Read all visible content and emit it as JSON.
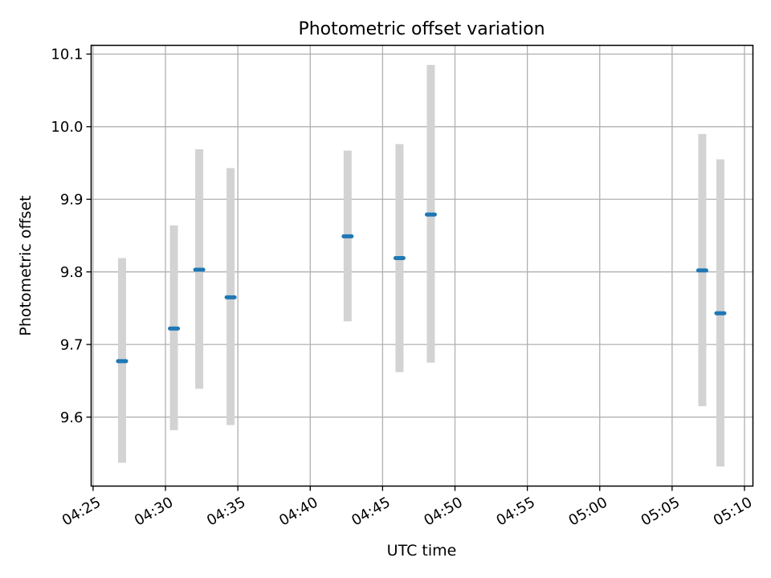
{
  "chart_data": {
    "type": "scatter",
    "title": "Photometric offset variation",
    "xlabel": "UTC time",
    "ylabel": "Photometric offset",
    "x_tick_labels": [
      "04:25",
      "04:30",
      "04:35",
      "04:40",
      "04:45",
      "04:50",
      "04:55",
      "05:00",
      "05:05",
      "05:10"
    ],
    "y_tick_labels": [
      "9.6",
      "9.7",
      "9.8",
      "9.9",
      "10.0",
      "10.1"
    ],
    "y_ticks": [
      9.6,
      9.7,
      9.8,
      9.9,
      10.0,
      10.1
    ],
    "xlim": [
      "04:24:52",
      "05:10:35"
    ],
    "ylim": [
      9.505,
      10.112
    ],
    "grid": true,
    "series": [
      {
        "x": [
          "04:27:00",
          "04:30:35",
          "04:32:20",
          "04:34:30",
          "04:42:35",
          "04:46:10",
          "04:48:20",
          "05:07:05",
          "05:08:20"
        ],
        "y": [
          9.677,
          9.722,
          9.803,
          9.765,
          9.849,
          9.819,
          9.879,
          9.802,
          9.743
        ],
        "yerr_low": [
          9.537,
          9.582,
          9.639,
          9.589,
          9.732,
          9.662,
          9.675,
          9.615,
          9.532
        ],
        "yerr_high": [
          9.819,
          9.864,
          9.969,
          9.943,
          9.967,
          9.976,
          10.085,
          9.99,
          9.955
        ]
      }
    ],
    "colors": {
      "point": "#1f77b4",
      "errorbar": "#d3d3d3",
      "grid": "#b0b0b0",
      "axes": "#000000"
    }
  }
}
